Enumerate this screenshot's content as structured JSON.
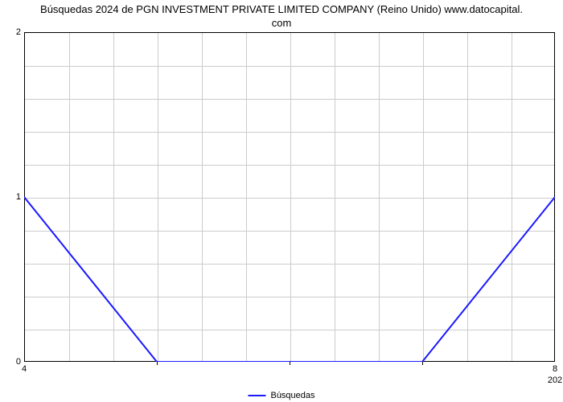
{
  "chart": {
    "type": "line",
    "title_line1": "Búsquedas 2024 de PGN INVESTMENT PRIVATE LIMITED COMPANY (Reino Unido) www.datocapital.",
    "title_line2": "com",
    "title_fontsize": 13,
    "title_color": "#000000",
    "background_color": "#ffffff",
    "plot_border_color": "#000000",
    "grid_color": "#cccccc",
    "line_color": "#1a1aff",
    "line_width": 2,
    "ylim": [
      0,
      2
    ],
    "yticks": [
      0,
      1,
      2
    ],
    "ytick_labels": [
      "0",
      "1",
      "2"
    ],
    "y_minor_gridlines": 10,
    "xlim": [
      0,
      4
    ],
    "xticks_major": [
      0,
      4
    ],
    "xtick_labels": [
      "4",
      "8"
    ],
    "x_year_label": "202",
    "x_minor_ticks": 12,
    "x_gridlines": 12,
    "data": {
      "x": [
        0,
        1,
        3,
        4
      ],
      "y": [
        1,
        0,
        0,
        1
      ]
    },
    "legend": {
      "label": "Búsquedas",
      "color": "#1a1aff"
    },
    "label_fontsize": 11
  }
}
